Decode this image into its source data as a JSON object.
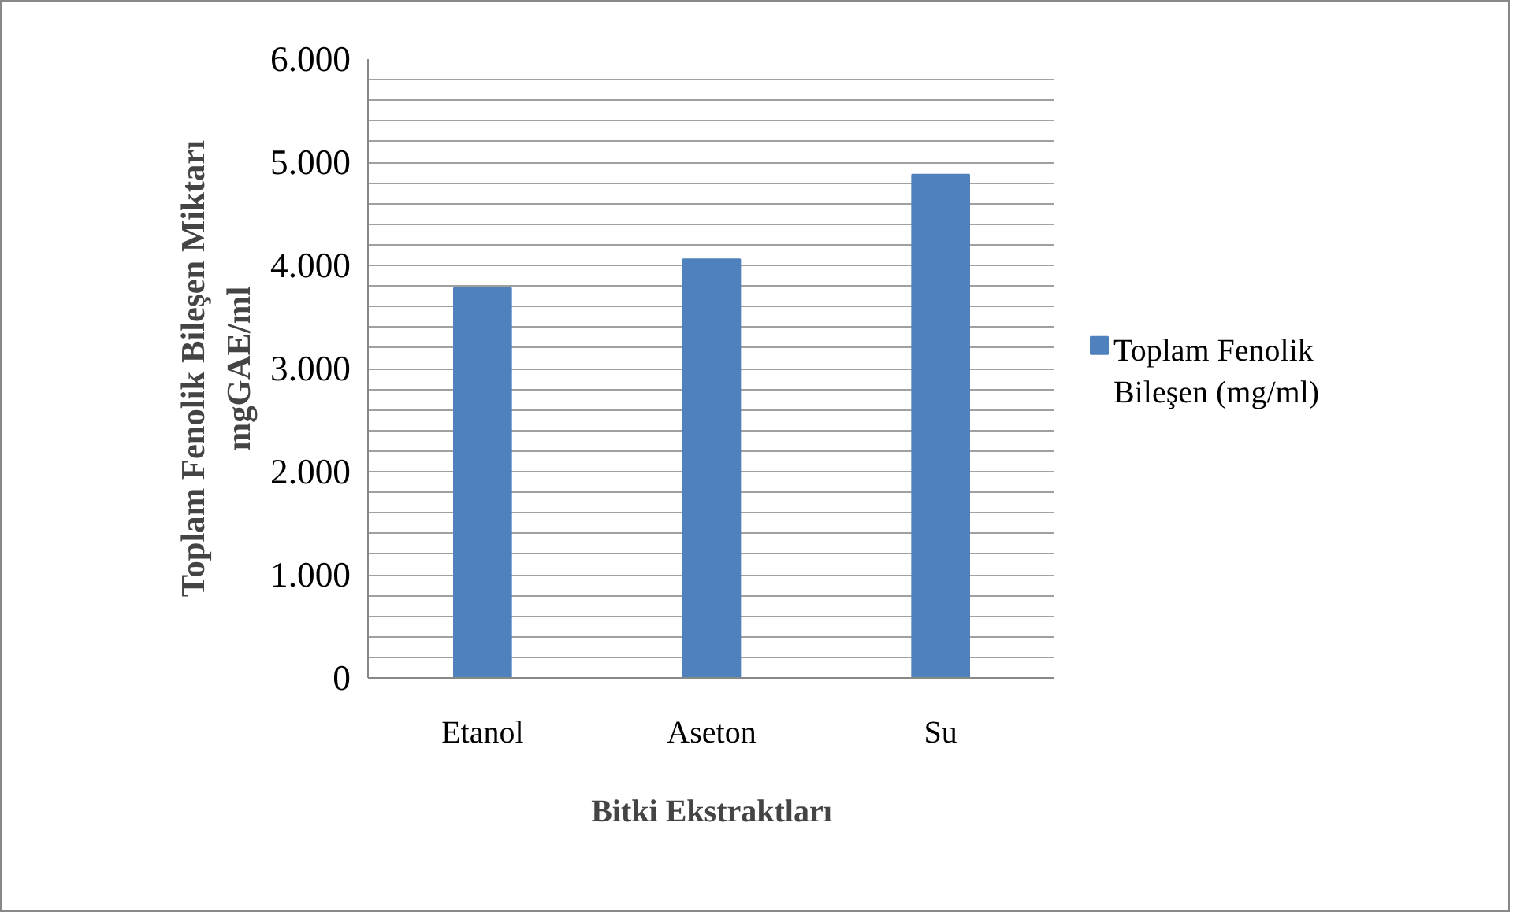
{
  "chart_data": {
    "type": "bar",
    "xlabel": "Bitki Ekstraktları",
    "ylabel": "Toplam Fenolik Bileşen Miktarı\nmgGAE/ml",
    "categories": [
      "Etanol",
      "Aseton",
      "Su"
    ],
    "series": [
      {
        "name": "Toplam Fenolik Bileşen (mg/ml)",
        "color": "#4f81bd",
        "values": [
          3780,
          4060,
          4880
        ]
      }
    ],
    "ylim": [
      0,
      6000
    ],
    "yticks": [
      0,
      {
        "value": 200,
        "label": null
      },
      {
        "value": 400,
        "label": null
      },
      {
        "value": 600,
        "label": null
      },
      {
        "value": 800,
        "label": null
      },
      {
        "value": 1000,
        "label": "1.000"
      },
      {
        "value": 1200,
        "label": null
      },
      {
        "value": 1400,
        "label": null
      },
      {
        "value": 1600,
        "label": null
      },
      {
        "value": 1800,
        "label": null
      },
      {
        "value": 2000,
        "label": "2.000"
      },
      {
        "value": 2200,
        "label": null
      },
      {
        "value": 2400,
        "label": null
      },
      {
        "value": 2600,
        "label": null
      },
      {
        "value": 2800,
        "label": null
      },
      {
        "value": 3000,
        "label": "3.000"
      },
      {
        "value": 3200,
        "label": null
      },
      {
        "value": 3400,
        "label": null
      },
      {
        "value": 3600,
        "label": null
      },
      {
        "value": 3800,
        "label": null
      },
      {
        "value": 4000,
        "label": "4.000"
      },
      {
        "value": 4200,
        "label": null
      },
      {
        "value": 4400,
        "label": null
      },
      {
        "value": 4600,
        "label": null
      },
      {
        "value": 4800,
        "label": null
      },
      {
        "value": 5000,
        "label": "5.000"
      },
      {
        "value": 5200,
        "label": null
      },
      {
        "value": 5400,
        "label": null
      },
      {
        "value": 5600,
        "label": null
      },
      {
        "value": 5800,
        "label": null
      },
      {
        "value": 6000,
        "label": "6.000"
      }
    ],
    "grid": "y",
    "legend": "right"
  }
}
